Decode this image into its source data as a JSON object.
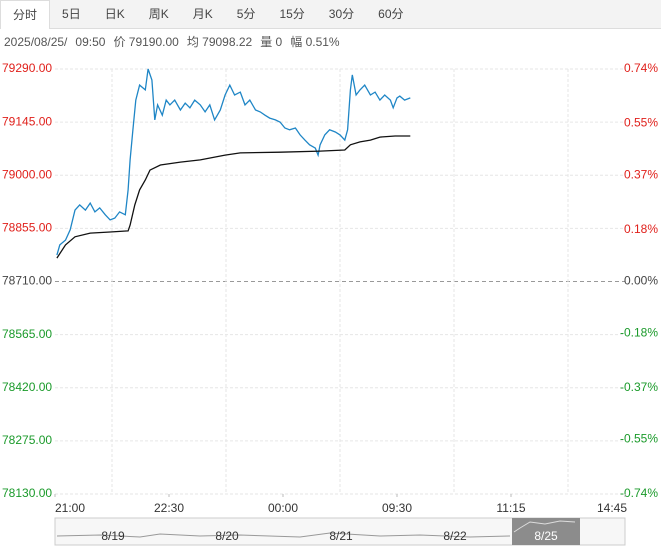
{
  "tabs": [
    "分时",
    "5日",
    "日K",
    "周K",
    "月K",
    "5分",
    "15分",
    "30分",
    "60分"
  ],
  "info": [
    "2025/08/25/",
    "09:50",
    "价 79190.00",
    "均 79098.22",
    "量 0",
    "幅 0.51%"
  ],
  "chart_data": {
    "type": "line",
    "xlim": [
      0,
      600
    ],
    "xticks": [
      {
        "value": 0,
        "label": "21:00"
      },
      {
        "value": 120,
        "label": "22:30"
      },
      {
        "value": 240,
        "label": "00:00"
      },
      {
        "value": 360,
        "label": "09:30"
      },
      {
        "value": 480,
        "label": "11:15"
      },
      {
        "value": 600,
        "label": "14:45"
      }
    ],
    "ylim": [
      78130,
      79290
    ],
    "yticks": [
      {
        "value": 79290,
        "label": "79290.00"
      },
      {
        "value": 79145,
        "label": "79145.00"
      },
      {
        "value": 79000,
        "label": "79000.00"
      },
      {
        "value": 78855,
        "label": "78855.00"
      },
      {
        "value": 78710,
        "label": "78710.00"
      },
      {
        "value": 78565,
        "label": "78565.00"
      },
      {
        "value": 78420,
        "label": "78420.00"
      },
      {
        "value": 78275,
        "label": "78275.00"
      },
      {
        "value": 78130,
        "label": "78130.00"
      }
    ],
    "y2lim": [
      -0.74,
      0.74
    ],
    "y2ticks": [
      {
        "value": 0.74,
        "label": "0.74%"
      },
      {
        "value": 0.55,
        "label": "0.55%"
      },
      {
        "value": 0.37,
        "label": "0.37%"
      },
      {
        "value": 0.18,
        "label": "0.18%"
      },
      {
        "value": 0,
        "label": "0.00%"
      },
      {
        "value": -0.18,
        "label": "-0.18%"
      },
      {
        "value": -0.37,
        "label": "-0.37%"
      },
      {
        "value": -0.55,
        "label": "-0.55%"
      },
      {
        "value": -0.74,
        "label": "-0.74%"
      }
    ],
    "grid": true,
    "series": [
      {
        "color": "#1f86c6",
        "x": [
          2,
          5,
          11,
          16,
          21,
          26,
          32,
          37,
          42,
          47,
          53,
          58,
          63,
          68,
          74,
          77,
          79,
          82,
          85,
          89,
          95,
          98,
          102,
          105,
          108,
          113,
          117,
          121,
          126,
          132,
          137,
          142,
          147,
          153,
          158,
          163,
          168,
          174,
          179,
          184,
          189,
          195,
          200,
          205,
          211,
          216,
          221,
          226,
          232,
          237,
          242,
          247,
          253,
          258,
          263,
          268,
          274,
          277,
          279,
          284,
          289,
          295,
          300,
          305,
          308,
          311,
          313,
          317,
          321,
          326,
          332,
          337,
          342,
          347,
          353,
          356,
          360,
          363,
          368,
          374
        ],
        "values": [
          78782,
          78810,
          78823,
          78851,
          78905,
          78919,
          78905,
          78924,
          78900,
          78911,
          78892,
          78878,
          78883,
          78900,
          78892,
          78960,
          79042,
          79124,
          79205,
          79246,
          79233,
          79290,
          79260,
          79151,
          79192,
          79164,
          79205,
          79192,
          79205,
          79178,
          79197,
          79184,
          79205,
          79192,
          79173,
          79192,
          79151,
          79178,
          79219,
          79246,
          79219,
          79227,
          79192,
          79205,
          79178,
          79173,
          79164,
          79156,
          79151,
          79145,
          79129,
          79124,
          79129,
          79110,
          79096,
          79083,
          79074,
          79055,
          79083,
          79110,
          79124,
          79118,
          79110,
          79096,
          79124,
          79233,
          79274,
          79219,
          79233,
          79246,
          79219,
          79227,
          79205,
          79219,
          79205,
          79184,
          79211,
          79216,
          79205,
          79211
        ]
      },
      {
        "color": "#111111",
        "x": [
          2,
          11,
          21,
          37,
          58,
          77,
          79,
          84,
          89,
          95,
          100,
          111,
          132,
          153,
          179,
          195,
          237,
          279,
          305,
          311,
          321,
          332,
          342,
          358,
          374
        ],
        "values": [
          78774,
          78810,
          78832,
          78842,
          78845,
          78848,
          78864,
          78919,
          78960,
          78987,
          79014,
          79028,
          79036,
          79042,
          79055,
          79061,
          79063,
          79066,
          79069,
          79083,
          79091,
          79096,
          79104,
          79107,
          79107
        ]
      }
    ]
  },
  "navigator": [
    "8/19",
    "8/20",
    "8/21",
    "8/22",
    "8/25"
  ]
}
